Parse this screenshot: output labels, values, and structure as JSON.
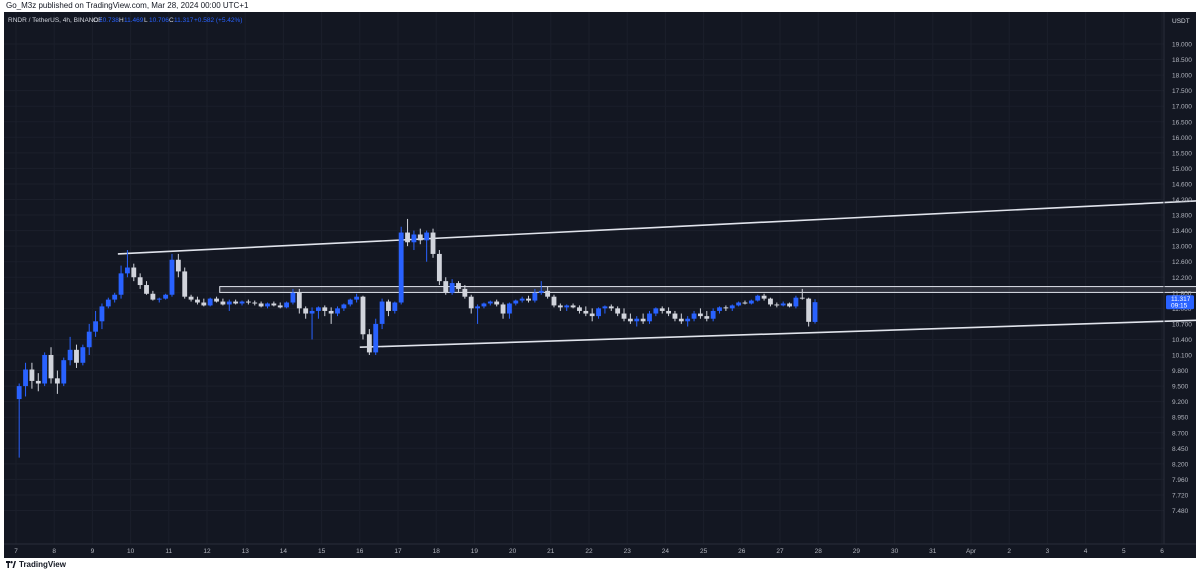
{
  "header": {
    "publish_line": "Go_M3z published on TradingView.com, Mar 28, 2024 00:00 UTC+1"
  },
  "legend": {
    "symbol": "RNDR / TetherUS, 4h, BINANCE",
    "o_label": "O",
    "o_value": "10.738",
    "h_label": "H",
    "h_value": "11.469",
    "l_label": "L",
    "l_value": "10.706",
    "c_label": "C",
    "c_value": "11.317",
    "change": "+0.582 (+5.42%)"
  },
  "price_axis": {
    "currency": "USDT",
    "ticks": [
      "19.000",
      "18.500",
      "18.000",
      "17.500",
      "17.000",
      "16.500",
      "16.000",
      "15.500",
      "15.000",
      "14.600",
      "14.200",
      "13.800",
      "13.400",
      "13.000",
      "12.600",
      "12.200",
      "11.800",
      "11.000",
      "10.700",
      "10.400",
      "10.100",
      "9.800",
      "9.500",
      "9.200",
      "8.950",
      "8.700",
      "8.450",
      "8.200",
      "7.960",
      "7.720",
      "7.480"
    ],
    "current_price": "11.317",
    "countdown": "09:15"
  },
  "time_axis": {
    "ticks": [
      "7",
      "8",
      "9",
      "10",
      "11",
      "12",
      "13",
      "14",
      "15",
      "16",
      "17",
      "18",
      "19",
      "20",
      "21",
      "22",
      "23",
      "24",
      "25",
      "26",
      "27",
      "28",
      "29",
      "30",
      "31",
      "Apr",
      "2",
      "3",
      "4",
      "5",
      "6"
    ]
  },
  "footer": {
    "brand": "TradingView",
    "logo_icon": "tradingview-logo-icon"
  },
  "colors": {
    "background": "#131722",
    "up": "#2962ff",
    "down": "#d1d4dc",
    "drawing": "#e0e3eb",
    "accent": "#2962ff"
  },
  "chart_data": {
    "type": "candlestick",
    "timeframe": "4h",
    "candles": [
      [
        9.25,
        9.55,
        8.3,
        9.5
      ],
      [
        9.5,
        9.95,
        9.3,
        9.82
      ],
      [
        9.82,
        9.95,
        9.45,
        9.6
      ],
      [
        9.6,
        9.75,
        9.4,
        9.55
      ],
      [
        9.55,
        10.15,
        9.5,
        10.1
      ],
      [
        10.1,
        10.25,
        9.55,
        9.65
      ],
      [
        9.65,
        9.8,
        9.35,
        9.55
      ],
      [
        9.55,
        10.05,
        9.5,
        10.0
      ],
      [
        10.0,
        10.45,
        9.9,
        10.2
      ],
      [
        10.2,
        10.3,
        9.85,
        9.95
      ],
      [
        9.95,
        10.3,
        9.9,
        10.25
      ],
      [
        10.25,
        10.7,
        10.1,
        10.55
      ],
      [
        10.55,
        10.95,
        10.45,
        10.75
      ],
      [
        10.75,
        11.25,
        10.6,
        11.1
      ],
      [
        11.1,
        11.55,
        11.0,
        11.45
      ],
      [
        11.45,
        11.8,
        11.3,
        11.7
      ],
      [
        11.7,
        12.5,
        11.5,
        12.3
      ],
      [
        12.3,
        12.9,
        12.2,
        12.45
      ],
      [
        12.45,
        12.55,
        12.1,
        12.2
      ],
      [
        12.2,
        12.3,
        11.9,
        12.0
      ],
      [
        12.0,
        12.1,
        11.7,
        11.75
      ],
      [
        11.75,
        11.85,
        11.4,
        11.45
      ],
      [
        11.45,
        11.55,
        11.3,
        11.5
      ],
      [
        11.5,
        11.75,
        11.45,
        11.7
      ],
      [
        11.7,
        12.8,
        11.6,
        12.65
      ],
      [
        12.65,
        12.8,
        12.2,
        12.35
      ],
      [
        12.35,
        12.45,
        11.5,
        11.6
      ],
      [
        11.6,
        11.7,
        11.35,
        11.45
      ],
      [
        11.45,
        11.6,
        11.2,
        11.3
      ],
      [
        11.3,
        11.5,
        11.1,
        11.15
      ],
      [
        11.15,
        11.55,
        11.1,
        11.5
      ],
      [
        11.5,
        11.6,
        11.3,
        11.35
      ],
      [
        11.35,
        11.5,
        11.15,
        11.2
      ],
      [
        11.2,
        11.45,
        10.95,
        11.35
      ],
      [
        11.35,
        11.45,
        11.2,
        11.25
      ],
      [
        11.25,
        11.4,
        11.15,
        11.35
      ],
      [
        11.35,
        11.45,
        11.2,
        11.3
      ],
      [
        11.3,
        11.4,
        11.15,
        11.25
      ],
      [
        11.25,
        11.35,
        11.05,
        11.1
      ],
      [
        11.1,
        11.3,
        11.0,
        11.25
      ],
      [
        11.25,
        11.35,
        11.1,
        11.15
      ],
      [
        11.15,
        11.3,
        11.0,
        11.05
      ],
      [
        11.05,
        11.35,
        11.0,
        11.3
      ],
      [
        11.3,
        11.9,
        11.2,
        11.8
      ],
      [
        11.8,
        11.9,
        10.9,
        11.0
      ],
      [
        11.0,
        11.1,
        10.8,
        10.9
      ],
      [
        10.9,
        11.05,
        10.4,
        10.95
      ],
      [
        10.95,
        11.1,
        10.8,
        11.05
      ],
      [
        11.05,
        11.15,
        10.85,
        10.95
      ],
      [
        10.95,
        11.05,
        10.7,
        10.9
      ],
      [
        10.9,
        11.1,
        10.85,
        11.0
      ],
      [
        11.0,
        11.25,
        10.95,
        11.2
      ],
      [
        11.2,
        11.5,
        11.1,
        11.45
      ],
      [
        11.45,
        11.75,
        11.3,
        11.6
      ],
      [
        11.6,
        11.65,
        10.4,
        10.5
      ],
      [
        10.5,
        10.6,
        10.1,
        10.15
      ],
      [
        10.15,
        10.8,
        10.1,
        10.7
      ],
      [
        10.7,
        11.5,
        10.6,
        11.35
      ],
      [
        11.35,
        11.45,
        10.85,
        10.95
      ],
      [
        10.95,
        11.35,
        10.9,
        11.3
      ],
      [
        11.3,
        13.5,
        11.2,
        13.35
      ],
      [
        13.35,
        13.7,
        13.0,
        13.1
      ],
      [
        13.1,
        13.4,
        12.9,
        13.3
      ],
      [
        13.3,
        13.45,
        13.05,
        13.15
      ],
      [
        13.15,
        13.4,
        12.6,
        13.35
      ],
      [
        13.35,
        13.45,
        12.7,
        12.8
      ],
      [
        12.8,
        12.9,
        12.0,
        12.1
      ],
      [
        12.1,
        12.2,
        11.7,
        11.8
      ],
      [
        11.8,
        12.15,
        11.7,
        12.05
      ],
      [
        12.05,
        12.1,
        11.8,
        11.9
      ],
      [
        11.9,
        12.0,
        11.5,
        11.6
      ],
      [
        11.6,
        11.7,
        10.9,
        11.0
      ],
      [
        11.0,
        11.2,
        10.7,
        11.1
      ],
      [
        11.1,
        11.3,
        11.0,
        11.25
      ],
      [
        11.25,
        11.4,
        11.15,
        11.35
      ],
      [
        11.35,
        11.45,
        11.1,
        11.2
      ],
      [
        11.2,
        11.3,
        10.8,
        10.9
      ],
      [
        10.9,
        11.3,
        10.8,
        11.25
      ],
      [
        11.25,
        11.45,
        11.15,
        11.4
      ],
      [
        11.4,
        11.6,
        11.3,
        11.5
      ],
      [
        11.5,
        11.65,
        11.3,
        11.4
      ],
      [
        11.4,
        11.9,
        11.3,
        11.8
      ],
      [
        11.8,
        12.1,
        11.7,
        11.85
      ],
      [
        11.85,
        11.95,
        11.5,
        11.6
      ],
      [
        11.6,
        11.7,
        11.05,
        11.15
      ],
      [
        11.15,
        11.25,
        10.95,
        11.05
      ],
      [
        11.05,
        11.2,
        10.95,
        11.15
      ],
      [
        11.15,
        11.25,
        11.0,
        11.05
      ],
      [
        11.05,
        11.15,
        10.9,
        10.95
      ],
      [
        10.95,
        11.1,
        10.85,
        10.9
      ],
      [
        10.9,
        11.0,
        10.75,
        10.85
      ],
      [
        10.85,
        11.05,
        10.8,
        11.0
      ],
      [
        11.0,
        11.15,
        10.9,
        11.1
      ],
      [
        11.1,
        11.2,
        10.95,
        11.0
      ],
      [
        11.0,
        11.1,
        10.85,
        10.9
      ],
      [
        10.9,
        11.0,
        10.75,
        10.8
      ],
      [
        10.8,
        10.9,
        10.7,
        10.75
      ],
      [
        10.75,
        10.85,
        10.65,
        10.8
      ],
      [
        10.8,
        10.9,
        10.7,
        10.75
      ],
      [
        10.75,
        10.95,
        10.7,
        10.9
      ],
      [
        10.9,
        11.05,
        10.85,
        11.0
      ],
      [
        11.0,
        11.1,
        10.9,
        10.95
      ],
      [
        10.95,
        11.05,
        10.85,
        10.9
      ],
      [
        10.9,
        10.95,
        10.75,
        10.8
      ],
      [
        10.8,
        10.9,
        10.7,
        10.75
      ],
      [
        10.75,
        10.85,
        10.65,
        10.8
      ],
      [
        10.8,
        10.95,
        10.75,
        10.9
      ],
      [
        10.9,
        11.0,
        10.8,
        10.85
      ],
      [
        10.85,
        10.95,
        10.75,
        10.8
      ],
      [
        10.8,
        11.0,
        10.75,
        10.95
      ],
      [
        10.95,
        11.1,
        10.9,
        11.05
      ],
      [
        11.05,
        11.15,
        10.95,
        11.0
      ],
      [
        11.0,
        11.2,
        10.95,
        11.15
      ],
      [
        11.15,
        11.35,
        11.1,
        11.3
      ],
      [
        11.3,
        11.4,
        11.2,
        11.25
      ],
      [
        11.25,
        11.45,
        11.2,
        11.4
      ],
      [
        11.4,
        11.7,
        11.35,
        11.65
      ],
      [
        11.65,
        11.75,
        11.4,
        11.5
      ],
      [
        11.5,
        11.55,
        11.1,
        11.2
      ],
      [
        11.2,
        11.3,
        11.05,
        11.15
      ],
      [
        11.15,
        11.35,
        11.1,
        11.25
      ],
      [
        11.25,
        11.3,
        11.05,
        11.1
      ],
      [
        11.1,
        11.65,
        11.0,
        11.55
      ],
      [
        11.55,
        11.9,
        11.45,
        11.5
      ],
      [
        11.5,
        11.55,
        10.65,
        10.74
      ],
      [
        10.738,
        11.469,
        10.706,
        11.317
      ]
    ],
    "drawings": [
      {
        "kind": "trendline",
        "label": "channel-top",
        "from": [
          16,
          12.8
        ],
        "to": [
          277,
          14.9
        ]
      },
      {
        "kind": "trendline",
        "label": "channel-bottom",
        "from": [
          54,
          10.25
        ],
        "to": [
          288,
          11.47
        ]
      },
      {
        "kind": "rectangle",
        "label": "resistance-zone",
        "from": [
          32,
          11.96
        ],
        "to": [
          277,
          11.81
        ]
      }
    ]
  }
}
